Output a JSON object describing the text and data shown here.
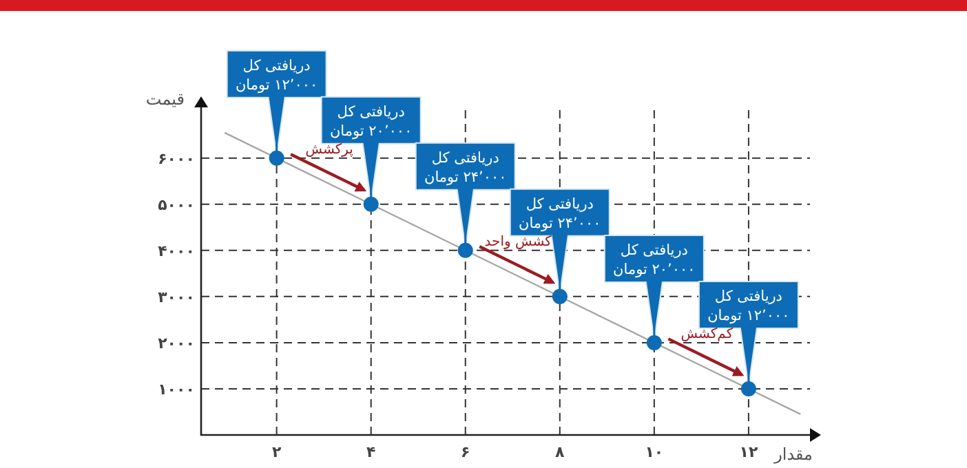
{
  "chart_data": {
    "type": "scatter",
    "xlabel": "مقدار",
    "ylabel": "قیمت",
    "xlim": [
      0.4,
      13.3
    ],
    "ylim": [
      0,
      7100
    ],
    "grid": true,
    "xticks": [
      {
        "value": 2,
        "label": "۲"
      },
      {
        "value": 4,
        "label": "۴"
      },
      {
        "value": 6,
        "label": "۶"
      },
      {
        "value": 8,
        "label": "۸"
      },
      {
        "value": 10,
        "label": "۱۰"
      },
      {
        "value": 12,
        "label": "۱۲"
      }
    ],
    "yticks": [
      {
        "value": 1000,
        "label": "۱۰۰۰"
      },
      {
        "value": 2000,
        "label": "۲۰۰۰"
      },
      {
        "value": 3000,
        "label": "۳۰۰۰"
      },
      {
        "value": 4000,
        "label": "۴۰۰۰"
      },
      {
        "value": 5000,
        "label": "۵۰۰۰"
      },
      {
        "value": 6000,
        "label": "۶۰۰۰"
      }
    ],
    "series": [
      {
        "type": "line",
        "color": "#a6a6a6",
        "x": [
          0.9,
          13.1
        ],
        "values": [
          6550,
          450
        ]
      },
      {
        "type": "scatter",
        "color": "#0d6cb5",
        "marker": "circle",
        "x": [
          2,
          4,
          6,
          8,
          10,
          12
        ],
        "values": [
          6000,
          5000,
          4000,
          3000,
          2000,
          1000
        ]
      }
    ],
    "annotations": [
      {
        "text": "دریافتی کل\n۱۲٬۰۰۰ تومان",
        "x": 2,
        "y": 6000
      },
      {
        "text": "دریافتی کل\n۲۰٬۰۰۰ تومان",
        "x": 4,
        "y": 5000
      },
      {
        "text": "دریافتی کل\n۲۴٬۰۰۰ تومان",
        "x": 6,
        "y": 4000
      },
      {
        "text": "دریافتی کل\n۲۴٬۰۰۰ تومان",
        "x": 8,
        "y": 3000
      },
      {
        "text": "دریافتی کل\n۲۰٬۰۰۰ تومان",
        "x": 10,
        "y": 2000
      },
      {
        "text": "دریافتی کل\n۱۲٬۰۰۰ تومان",
        "x": 12,
        "y": 1000
      },
      {
        "text": "پرکشش",
        "x": 3,
        "y": 5500
      },
      {
        "text": "کشش واحد",
        "x": 7,
        "y": 3500
      },
      {
        "text": "کم‌کشش",
        "x": 11,
        "y": 1500
      }
    ]
  }
}
